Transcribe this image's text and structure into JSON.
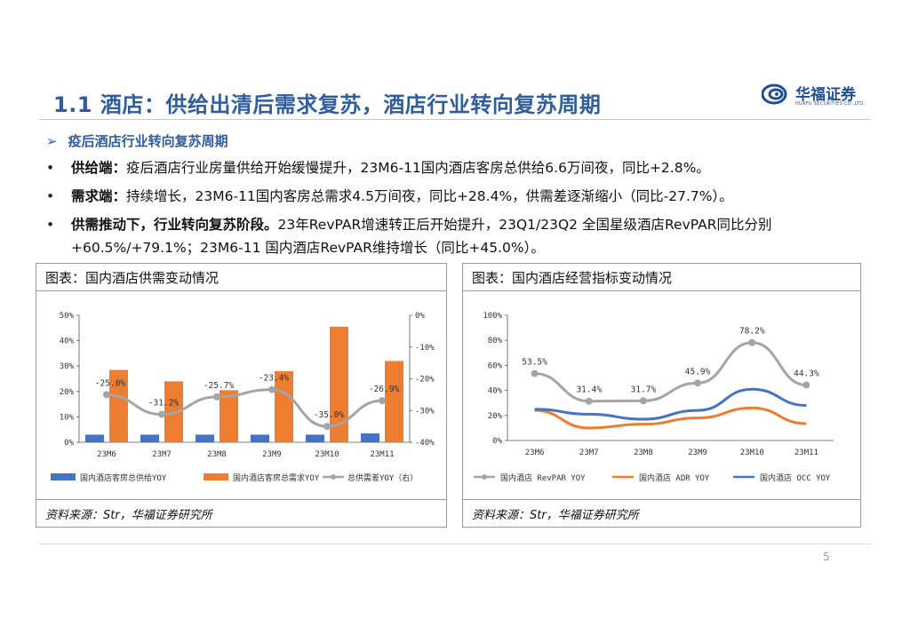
{
  "header": {
    "title": "1.1 酒店：供给出清后需求复苏，酒店行业转向复苏周期",
    "logo_cn": "华福证券",
    "logo_en": "HUAFU SECURITIES CO.,LTD."
  },
  "subheading": "疫后酒店行业转向复苏周期",
  "subheading_marker": "➢",
  "bullets": [
    {
      "marker": "•",
      "bold": "供给端：",
      "text": "疫后酒店行业房量供给开始缓慢提升，23M6-11国内酒店客房总供给6.6万间夜，同比+2.8%。"
    },
    {
      "marker": "•",
      "bold": "需求端：",
      "text": "持续增长，23M6-11国内客房总需求4.5万间夜，同比+28.4%，供需差逐渐缩小（同比-27.7%）。"
    },
    {
      "marker": "•",
      "bold": "供需推动下，行业转向复苏阶段。",
      "text": "23年RevPAR增速转正后开始提升，23Q1/23Q2  全国星级酒店RevPAR同比分别+60.5%/+79.1%；23M6-11 国内酒店RevPAR维持增长（同比+45.0%）。"
    }
  ],
  "left_panel": {
    "title": "图表：国内酒店供需变动情况",
    "source": "资料来源：Str，华福证券研究所"
  },
  "right_panel": {
    "title": "图表：国内酒店经营指标变动情况",
    "source": "资料来源：Str，华福证券研究所"
  },
  "chart_data": [
    {
      "type": "bar",
      "categories": [
        "23M6",
        "23M7",
        "23M8",
        "23M9",
        "23M10",
        "23M11"
      ],
      "series": [
        {
          "name": "国内酒店客房总供给YOY",
          "type": "bar",
          "axis": "left",
          "color": "#4472c4",
          "values": [
            3,
            3,
            3,
            3,
            3,
            3.5
          ]
        },
        {
          "name": "国内酒店客房总需求YOY",
          "type": "bar",
          "axis": "left",
          "color": "#ed7d31",
          "values": [
            28.5,
            24,
            20.5,
            28,
            45.5,
            32
          ]
        },
        {
          "name": "总供需差YOY（右）",
          "type": "line",
          "axis": "right",
          "color": "#a5a5a5",
          "values": [
            -25.0,
            -31.2,
            -25.7,
            -23.4,
            -35.0,
            -26.9
          ],
          "labels": [
            "-25.0%",
            "-31.2%",
            "-25.7%",
            "-23.4%",
            "-35.0%",
            "-26.9%"
          ]
        }
      ],
      "y_left": {
        "min": 0,
        "max": 50,
        "ticks": [
          "0%",
          "10%",
          "20%",
          "30%",
          "40%",
          "50%"
        ]
      },
      "y_right": {
        "min": -40,
        "max": 0,
        "ticks": [
          "-40%",
          "-30%",
          "-20%",
          "-10%",
          "0%"
        ]
      },
      "legend_position": "bottom"
    },
    {
      "type": "line",
      "categories": [
        "23M6",
        "23M7",
        "23M8",
        "23M9",
        "23M10",
        "23M11"
      ],
      "series": [
        {
          "name": "国内酒店 RevPAR YOY",
          "color": "#a5a5a5",
          "values": [
            53.5,
            31.4,
            31.7,
            45.9,
            78.2,
            44.3
          ],
          "labels": [
            "53.5%",
            "31.4%",
            "31.7%",
            "45.9%",
            "78.2%",
            "44.3%"
          ]
        },
        {
          "name": "国内酒店 ADR YOY",
          "color": "#ed7d31",
          "values": [
            24,
            10,
            13,
            18,
            26,
            13.5
          ]
        },
        {
          "name": "国内酒店 OCC YOY",
          "color": "#4472c4",
          "values": [
            25,
            21,
            17,
            24,
            41,
            28
          ]
        }
      ],
      "y": {
        "min": 0,
        "max": 100,
        "ticks": [
          "0%",
          "20%",
          "40%",
          "60%",
          "80%",
          "100%"
        ]
      },
      "legend_position": "bottom"
    }
  ],
  "page_number": "5"
}
